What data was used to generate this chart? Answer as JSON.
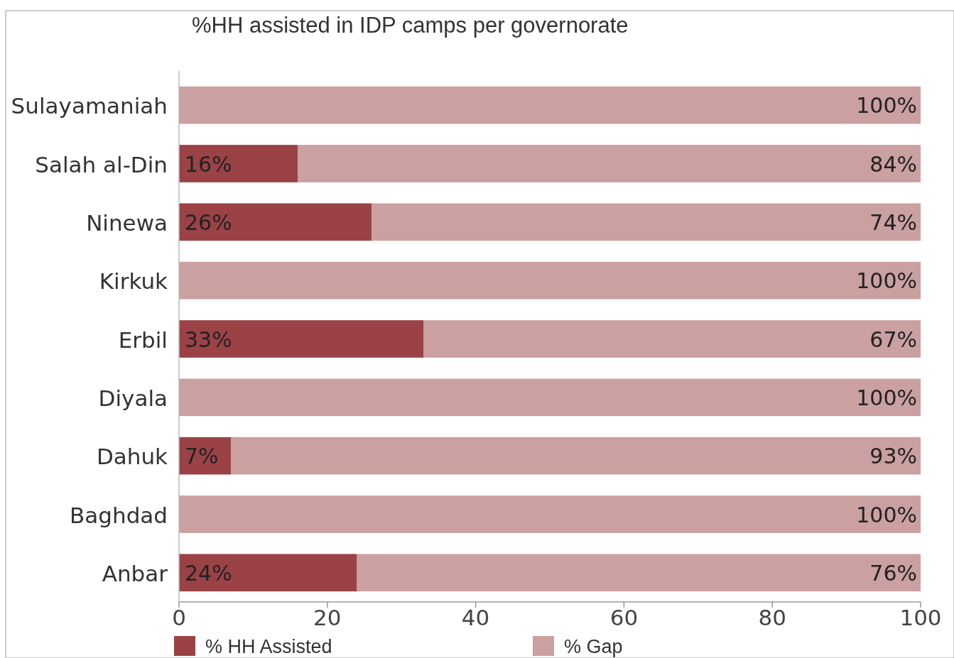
{
  "chart_data": {
    "type": "bar",
    "orientation": "horizontal",
    "stacked": true,
    "title": "%HH assisted in IDP camps per governorate",
    "categories": [
      "Sulayamaniah",
      "Salah al-Din",
      "Ninewa",
      "Kirkuk",
      "Erbil",
      "Diyala",
      "Dahuk",
      "Baghdad",
      "Anbar"
    ],
    "series": [
      {
        "name": "% HH Assisted",
        "color": "#9a4246",
        "values": [
          0,
          16,
          26,
          0,
          33,
          0,
          7,
          0,
          24
        ],
        "value_labels": [
          null,
          "16%",
          "26%",
          null,
          "33%",
          null,
          "7%",
          null,
          "24%"
        ]
      },
      {
        "name": "% Gap",
        "color": "#cba0a0",
        "values": [
          100,
          84,
          74,
          100,
          67,
          100,
          93,
          100,
          76
        ],
        "value_labels": [
          "100%",
          "84%",
          "74%",
          "100%",
          "67%",
          "100%",
          "93%",
          "100%",
          "76%"
        ]
      }
    ],
    "xlim": [
      0,
      100
    ],
    "xticks": [
      0,
      20,
      40,
      60,
      80,
      100
    ],
    "grid": false,
    "legend": "bottom"
  }
}
